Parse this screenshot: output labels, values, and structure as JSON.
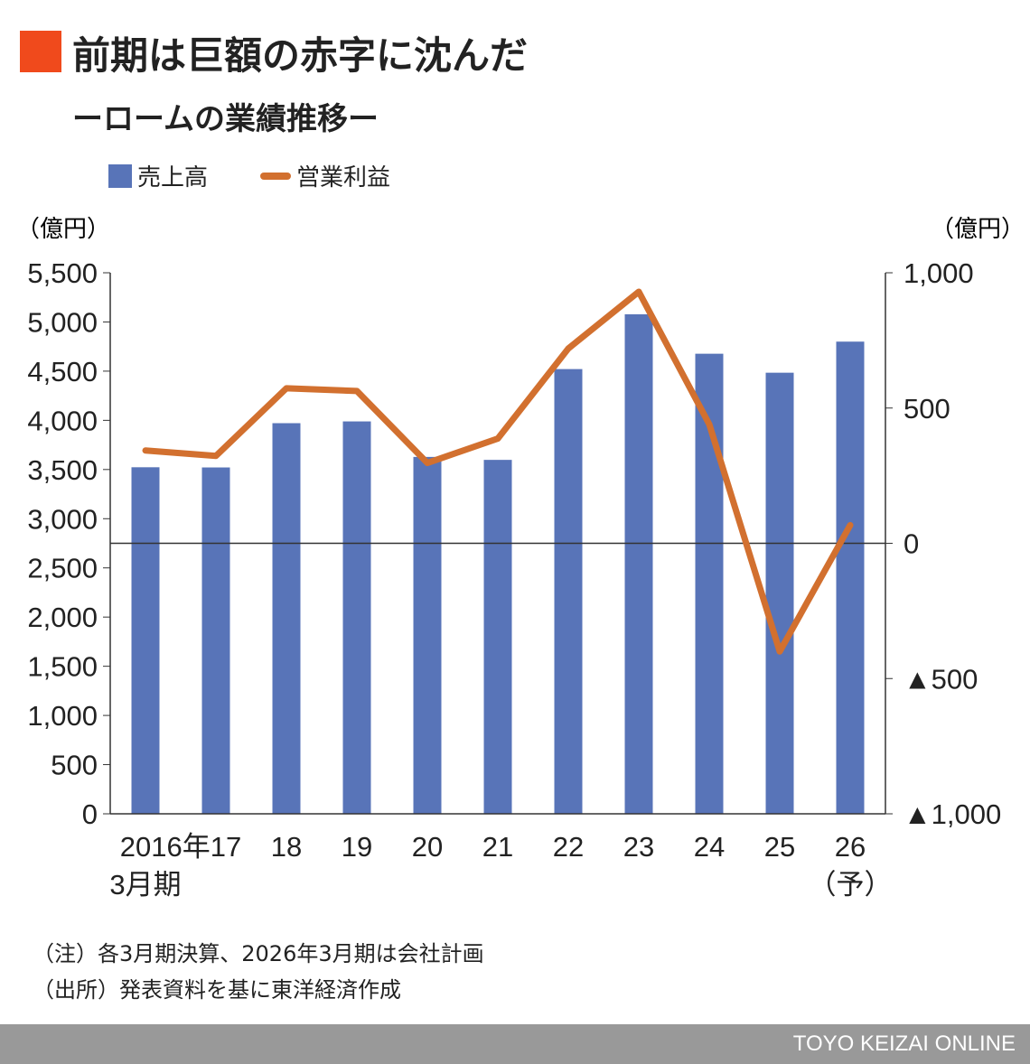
{
  "header": {
    "title": "前期は巨額の赤字に沈んだ",
    "subtitle": "ーロームの業績推移ー"
  },
  "chart_data": {
    "type": "bar+line",
    "title": "前期は巨額の赤字に沈んだ",
    "subtitle": "ーロームの業績推移ー",
    "categories": [
      "2016年\n3月期",
      "17",
      "18",
      "19",
      "20",
      "21",
      "22",
      "23",
      "24",
      "25",
      "26\n(予)"
    ],
    "category_labels": [
      [
        "2016年17",
        ""
      ],
      [
        "3月期"
      ]
    ],
    "series": [
      {
        "name": "売上高",
        "type": "bar",
        "axis": "left",
        "color": "#5874b8",
        "values": [
          3523,
          3521,
          3971,
          3989,
          3628,
          3598,
          4521,
          5078,
          4677,
          4484,
          4800
        ]
      },
      {
        "name": "営業利益",
        "type": "line",
        "axis": "right",
        "color": "#d2702f",
        "values": [
          343,
          323,
          573,
          563,
          297,
          387,
          720,
          930,
          440,
          -400,
          67
        ]
      }
    ],
    "left_axis": {
      "label": "（億円）",
      "ylim": [
        0,
        5500
      ],
      "ticks": [
        "0",
        "500",
        "1,000",
        "1,500",
        "2,000",
        "2,500",
        "3,000",
        "3,500",
        "4,000",
        "4,500",
        "5,000",
        "5,500"
      ]
    },
    "right_axis": {
      "label": "（億円）",
      "ylim": [
        -1000,
        1000
      ],
      "ticks": [
        "▲1,000",
        "▲500",
        "0",
        "500",
        "1,000"
      ]
    },
    "x_ticks": [
      "2016年17",
      "18",
      "19",
      "20",
      "21",
      "22",
      "23",
      "24",
      "25",
      "26"
    ],
    "x_subticks": [
      "3月期",
      "（予）"
    ],
    "legend_placement": "top-left"
  },
  "notes": [
    "（注）各3月期決算、2026年3月期は会社計画",
    "（出所）発表資料を基に東洋経済作成"
  ],
  "footer": "TOYO KEIZAI ONLINE"
}
